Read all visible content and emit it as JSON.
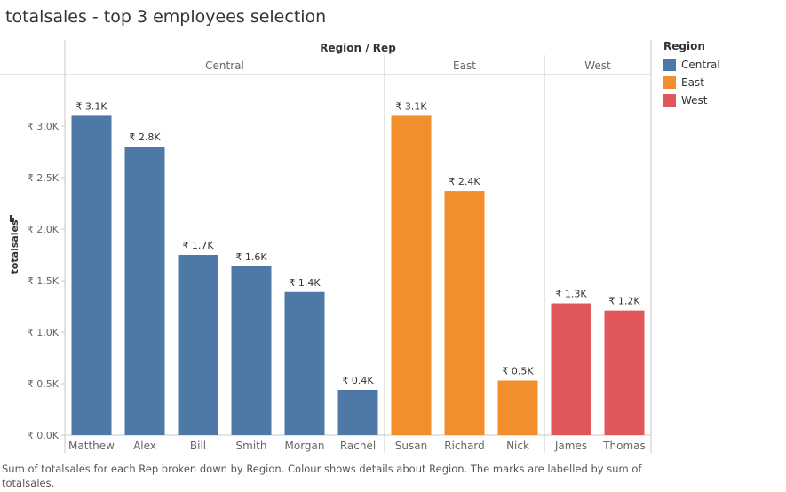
{
  "page": {
    "title": "totalsales - top 3 employees selection",
    "caption": "Sum of totalsales for each Rep broken down by Region. Colour shows details about Region. The marks are labelled by sum of totalsales."
  },
  "legend": {
    "title": "Region",
    "items": [
      {
        "label": "Central",
        "color": "#4e79a7"
      },
      {
        "label": "East",
        "color": "#f28e2b"
      },
      {
        "label": "West",
        "color": "#e15759"
      }
    ]
  },
  "chart_data": {
    "type": "bar",
    "header_label": "Region / Rep",
    "ylabel": "totalsales",
    "ylim": [
      0,
      3500
    ],
    "grid": false,
    "legend_position": "right",
    "y_ticks": [
      {
        "value": 0,
        "label": "₹ 0.0K"
      },
      {
        "value": 500,
        "label": "₹ 0.5K"
      },
      {
        "value": 1000,
        "label": "₹ 1.0K"
      },
      {
        "value": 1500,
        "label": "₹ 1.5K"
      },
      {
        "value": 2000,
        "label": "₹ 2.0K"
      },
      {
        "value": 2500,
        "label": "₹ 2.5K"
      },
      {
        "value": 3000,
        "label": "₹ 3.0K"
      }
    ],
    "regions": [
      {
        "name": "Central",
        "color": "#4e79a7",
        "bars": [
          {
            "rep": "Matthew",
            "value": 3100,
            "label": "₹ 3.1K"
          },
          {
            "rep": "Alex",
            "value": 2800,
            "label": "₹ 2.8K"
          },
          {
            "rep": "Bill",
            "value": 1750,
            "label": "₹ 1.7K"
          },
          {
            "rep": "Smith",
            "value": 1640,
            "label": "₹ 1.6K"
          },
          {
            "rep": "Morgan",
            "value": 1390,
            "label": "₹ 1.4K"
          },
          {
            "rep": "Rachel",
            "value": 440,
            "label": "₹ 0.4K"
          }
        ]
      },
      {
        "name": "East",
        "color": "#f28e2b",
        "bars": [
          {
            "rep": "Susan",
            "value": 3100,
            "label": "₹ 3.1K"
          },
          {
            "rep": "Richard",
            "value": 2370,
            "label": "₹ 2.4K"
          },
          {
            "rep": "Nick",
            "value": 530,
            "label": "₹ 0.5K"
          }
        ]
      },
      {
        "name": "West",
        "color": "#e15759",
        "bars": [
          {
            "rep": "James",
            "value": 1280,
            "label": "₹ 1.3K"
          },
          {
            "rep": "Thomas",
            "value": 1210,
            "label": "₹ 1.2K"
          }
        ]
      }
    ]
  }
}
